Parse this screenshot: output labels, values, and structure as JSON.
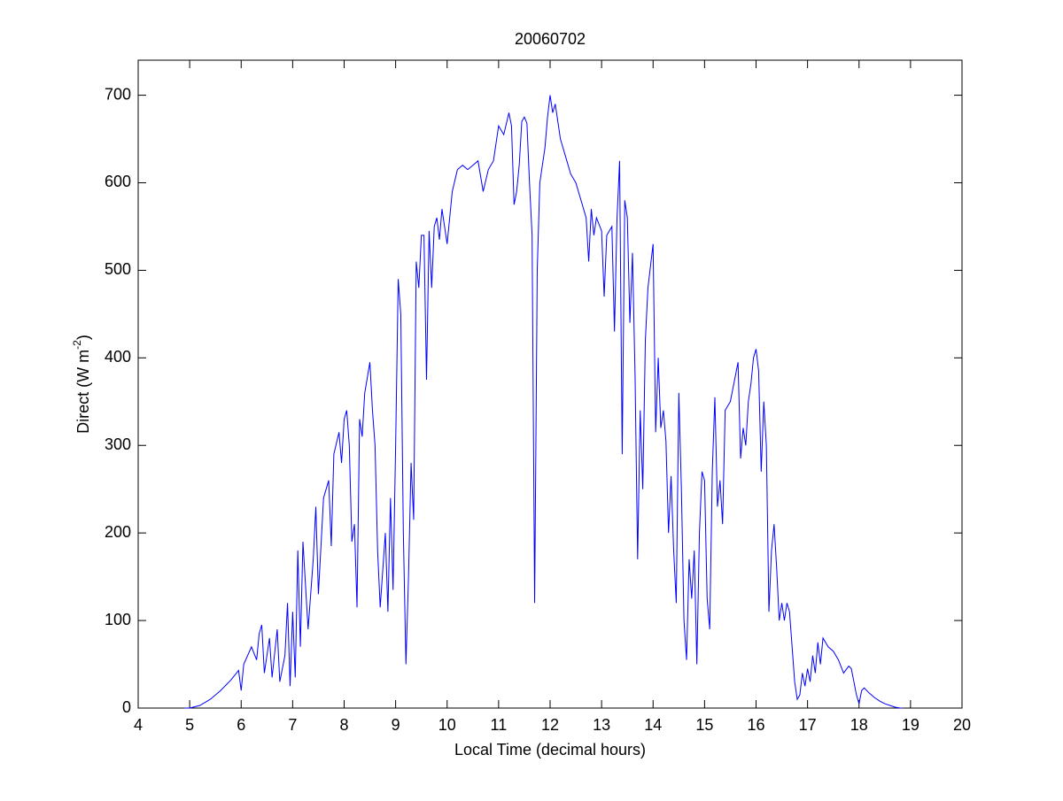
{
  "chart_data": {
    "type": "line",
    "title": "20060702",
    "x_label": "Local Time (decimal hours)",
    "y_label": "Direct (W m",
    "y_label_sup": "-2",
    "y_label_end": ")",
    "xlim": [
      4,
      20
    ],
    "xticks": [
      4,
      5,
      6,
      7,
      8,
      9,
      10,
      11,
      12,
      13,
      14,
      15,
      16,
      17,
      18,
      19,
      20
    ],
    "ylim": [
      0,
      740
    ],
    "yticks": [
      0,
      100,
      200,
      300,
      400,
      500,
      600,
      700
    ],
    "grid": false,
    "series": [
      {
        "color": "#0000ff",
        "x": [
          4.9,
          5.0,
          5.2,
          5.4,
          5.6,
          5.8,
          5.95,
          6.0,
          6.05,
          6.2,
          6.3,
          6.35,
          6.4,
          6.45,
          6.55,
          6.6,
          6.7,
          6.75,
          6.85,
          6.9,
          6.95,
          7.0,
          7.05,
          7.1,
          7.15,
          7.2,
          7.3,
          7.4,
          7.45,
          7.5,
          7.6,
          7.7,
          7.75,
          7.8,
          7.9,
          7.95,
          8.0,
          8.05,
          8.1,
          8.15,
          8.2,
          8.25,
          8.3,
          8.35,
          8.4,
          8.5,
          8.55,
          8.6,
          8.65,
          8.7,
          8.8,
          8.85,
          8.9,
          8.95,
          9.0,
          9.05,
          9.1,
          9.15,
          9.2,
          9.25,
          9.3,
          9.35,
          9.4,
          9.45,
          9.5,
          9.55,
          9.6,
          9.65,
          9.7,
          9.75,
          9.8,
          9.85,
          9.9,
          10.0,
          10.05,
          10.1,
          10.2,
          10.3,
          10.4,
          10.5,
          10.6,
          10.7,
          10.8,
          10.9,
          11.0,
          11.1,
          11.2,
          11.25,
          11.3,
          11.35,
          11.4,
          11.45,
          11.5,
          11.55,
          11.6,
          11.65,
          11.7,
          11.75,
          11.8,
          11.85,
          11.9,
          11.95,
          12.0,
          12.05,
          12.1,
          12.15,
          12.2,
          12.3,
          12.4,
          12.5,
          12.6,
          12.7,
          12.75,
          12.8,
          12.85,
          12.9,
          13.0,
          13.05,
          13.1,
          13.2,
          13.25,
          13.3,
          13.35,
          13.4,
          13.45,
          13.5,
          13.55,
          13.6,
          13.65,
          13.7,
          13.75,
          13.8,
          13.85,
          13.9,
          14.0,
          14.05,
          14.1,
          14.15,
          14.2,
          14.25,
          14.3,
          14.35,
          14.4,
          14.45,
          14.5,
          14.55,
          14.6,
          14.65,
          14.7,
          14.75,
          14.8,
          14.85,
          14.9,
          14.95,
          15.0,
          15.05,
          15.1,
          15.15,
          15.2,
          15.25,
          15.3,
          15.35,
          15.4,
          15.5,
          15.6,
          15.65,
          15.7,
          15.75,
          15.8,
          15.85,
          15.9,
          15.95,
          16.0,
          16.05,
          16.1,
          16.15,
          16.2,
          16.25,
          16.3,
          16.35,
          16.4,
          16.45,
          16.5,
          16.55,
          16.6,
          16.65,
          16.7,
          16.75,
          16.8,
          16.85,
          16.9,
          16.95,
          17.0,
          17.05,
          17.1,
          17.15,
          17.2,
          17.25,
          17.3,
          17.4,
          17.5,
          17.6,
          17.7,
          17.8,
          17.85,
          17.9,
          17.95,
          18.0,
          18.05,
          18.1,
          18.2,
          18.3,
          18.4,
          18.5,
          18.6,
          18.7,
          18.8,
          18.85
        ],
        "values": [
          0,
          0,
          3,
          10,
          20,
          32,
          43,
          20,
          50,
          70,
          55,
          85,
          95,
          40,
          80,
          35,
          90,
          30,
          60,
          120,
          25,
          110,
          35,
          180,
          70,
          190,
          90,
          170,
          230,
          130,
          240,
          260,
          185,
          290,
          315,
          280,
          330,
          340,
          300,
          190,
          210,
          115,
          330,
          310,
          360,
          395,
          340,
          300,
          180,
          115,
          200,
          110,
          240,
          135,
          300,
          490,
          450,
          200,
          50,
          150,
          280,
          215,
          510,
          480,
          540,
          540,
          375,
          545,
          480,
          550,
          560,
          535,
          570,
          530,
          560,
          590,
          615,
          620,
          615,
          620,
          625,
          590,
          615,
          625,
          665,
          655,
          680,
          665,
          575,
          590,
          620,
          670,
          675,
          668,
          600,
          540,
          120,
          500,
          600,
          620,
          640,
          675,
          700,
          680,
          690,
          670,
          650,
          630,
          610,
          600,
          580,
          560,
          510,
          570,
          540,
          560,
          545,
          470,
          540,
          550,
          430,
          560,
          625,
          290,
          580,
          560,
          440,
          520,
          380,
          170,
          340,
          250,
          420,
          480,
          530,
          315,
          400,
          320,
          340,
          305,
          200,
          265,
          180,
          120,
          360,
          250,
          100,
          55,
          170,
          125,
          180,
          50,
          200,
          270,
          260,
          125,
          90,
          270,
          355,
          230,
          260,
          210,
          340,
          350,
          380,
          395,
          285,
          320,
          300,
          350,
          370,
          400,
          410,
          385,
          270,
          350,
          300,
          110,
          180,
          210,
          160,
          100,
          120,
          100,
          120,
          110,
          70,
          30,
          10,
          15,
          40,
          25,
          45,
          30,
          60,
          40,
          75,
          50,
          80,
          70,
          65,
          55,
          40,
          48,
          45,
          30,
          15,
          5,
          20,
          23,
          17,
          12,
          8,
          5,
          3,
          1,
          0,
          0
        ]
      }
    ]
  }
}
